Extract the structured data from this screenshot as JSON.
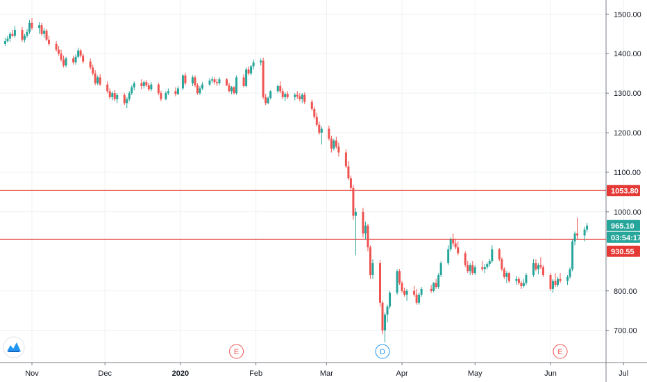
{
  "chart_data": {
    "type": "candlestick",
    "x_axis_labels": [
      "Nov",
      "Dec",
      "2020",
      "Feb",
      "Mar",
      "Apr",
      "May",
      "Jun",
      "Jul"
    ],
    "y_ticks": [
      "1500.00",
      "1400.00",
      "1300.00",
      "1200.00",
      "1100.00",
      "1000.00",
      "800.00",
      "700.00"
    ],
    "ylim": [
      625,
      1540
    ],
    "grid": true,
    "colors": {
      "up": "#26a69a",
      "down": "#ef5350",
      "level_line": "#e53935",
      "price_tag": "#26a69a",
      "level_tag": "#e53935",
      "grid": "#eef0f3"
    },
    "horizontal_levels": [
      {
        "value": 1053.8,
        "label": "1053.80"
      },
      {
        "value": 930.55,
        "label": "930.55"
      }
    ],
    "last_price": {
      "value": 965.1,
      "label": "965.10",
      "countdown": "03:54:17"
    },
    "event_markers": [
      {
        "letter": "E",
        "x_date": "2020-01-24",
        "color": "#ef5350"
      },
      {
        "letter": "D",
        "x_date": "2020-03-24",
        "color": "#2196f3"
      },
      {
        "letter": "E",
        "x_date": "2020-06-05",
        "color": "#ef5350"
      }
    ],
    "candles": [
      [
        "2019-10-21",
        1425,
        1440,
        1420,
        1432
      ],
      [
        "2019-10-22",
        1432,
        1445,
        1428,
        1438
      ],
      [
        "2019-10-23",
        1438,
        1455,
        1430,
        1450
      ],
      [
        "2019-10-24",
        1450,
        1460,
        1442,
        1445
      ],
      [
        "2019-10-25",
        1445,
        1470,
        1440,
        1460
      ],
      [
        "2019-10-28",
        1460,
        1468,
        1430,
        1435
      ],
      [
        "2019-10-29",
        1435,
        1450,
        1428,
        1445
      ],
      [
        "2019-10-30",
        1445,
        1462,
        1440,
        1455
      ],
      [
        "2019-10-31",
        1455,
        1485,
        1450,
        1478
      ],
      [
        "2019-11-01",
        1478,
        1490,
        1460,
        1465
      ],
      [
        "2019-11-04",
        1465,
        1480,
        1450,
        1472
      ],
      [
        "2019-11-05",
        1472,
        1478,
        1445,
        1450
      ],
      [
        "2019-11-06",
        1450,
        1465,
        1440,
        1458
      ],
      [
        "2019-11-07",
        1458,
        1462,
        1432,
        1435
      ],
      [
        "2019-11-08",
        1435,
        1445,
        1420,
        1425
      ],
      [
        "2019-11-11",
        1425,
        1432,
        1405,
        1410
      ],
      [
        "2019-11-12",
        1410,
        1420,
        1395,
        1400
      ],
      [
        "2019-11-13",
        1400,
        1410,
        1380,
        1385
      ],
      [
        "2019-11-14",
        1385,
        1395,
        1365,
        1370
      ],
      [
        "2019-11-15",
        1370,
        1392,
        1365,
        1388
      ],
      [
        "2019-11-18",
        1388,
        1395,
        1372,
        1378
      ],
      [
        "2019-11-19",
        1378,
        1398,
        1372,
        1392
      ],
      [
        "2019-11-20",
        1392,
        1415,
        1388,
        1408
      ],
      [
        "2019-11-21",
        1408,
        1412,
        1390,
        1395
      ],
      [
        "2019-11-22",
        1395,
        1400,
        1375,
        1380
      ],
      [
        "2019-11-25",
        1380,
        1388,
        1360,
        1365
      ],
      [
        "2019-11-26",
        1365,
        1372,
        1345,
        1350
      ],
      [
        "2019-11-27",
        1350,
        1358,
        1320,
        1325
      ],
      [
        "2019-11-28",
        1325,
        1345,
        1320,
        1340
      ],
      [
        "2019-11-29",
        1340,
        1348,
        1318,
        1322
      ],
      [
        "2019-12-02",
        1322,
        1330,
        1300,
        1305
      ],
      [
        "2019-12-03",
        1305,
        1312,
        1285,
        1290
      ],
      [
        "2019-12-04",
        1290,
        1305,
        1282,
        1300
      ],
      [
        "2019-12-05",
        1300,
        1308,
        1280,
        1285
      ],
      [
        "2019-12-06",
        1285,
        1300,
        1275,
        1295
      ],
      [
        "2019-12-09",
        1295,
        1300,
        1270,
        1275
      ],
      [
        "2019-12-10",
        1275,
        1290,
        1262,
        1285
      ],
      [
        "2019-12-11",
        1285,
        1305,
        1280,
        1300
      ],
      [
        "2019-12-12",
        1300,
        1320,
        1295,
        1315
      ],
      [
        "2019-12-13",
        1315,
        1330,
        1308,
        1325
      ],
      [
        "2019-12-16",
        1325,
        1335,
        1310,
        1318
      ],
      [
        "2019-12-17",
        1318,
        1332,
        1312,
        1328
      ],
      [
        "2019-12-18",
        1328,
        1334,
        1316,
        1320
      ],
      [
        "2019-12-19",
        1320,
        1326,
        1305,
        1310
      ],
      [
        "2019-12-20",
        1310,
        1328,
        1305,
        1322
      ],
      [
        "2019-12-23",
        1322,
        1326,
        1295,
        1300
      ],
      [
        "2019-12-24",
        1300,
        1306,
        1280,
        1285
      ],
      [
        "2019-12-26",
        1285,
        1305,
        1282,
        1300
      ],
      [
        "2019-12-27",
        1300,
        1312,
        1295,
        1305
      ],
      [
        "2019-12-30",
        1305,
        1315,
        1292,
        1298
      ],
      [
        "2019-12-31",
        1298,
        1318,
        1295,
        1312
      ],
      [
        "2020-01-02",
        1312,
        1348,
        1308,
        1345
      ],
      [
        "2020-01-03",
        1345,
        1352,
        1320,
        1325
      ],
      [
        "2020-01-06",
        1325,
        1345,
        1318,
        1340
      ],
      [
        "2020-01-07",
        1340,
        1345,
        1315,
        1320
      ],
      [
        "2020-01-08",
        1320,
        1325,
        1296,
        1300
      ],
      [
        "2020-01-09",
        1300,
        1318,
        1295,
        1312
      ],
      [
        "2020-01-10",
        1312,
        1328,
        1308,
        1322
      ],
      [
        "2020-01-13",
        1322,
        1338,
        1318,
        1332
      ],
      [
        "2020-01-14",
        1332,
        1342,
        1325,
        1335
      ],
      [
        "2020-01-15",
        1335,
        1340,
        1322,
        1328
      ],
      [
        "2020-01-16",
        1328,
        1336,
        1318,
        1325
      ],
      [
        "2020-01-17",
        1325,
        1340,
        1320,
        1335
      ],
      [
        "2020-01-20",
        1335,
        1338,
        1318,
        1320
      ],
      [
        "2020-01-21",
        1320,
        1326,
        1302,
        1305
      ],
      [
        "2020-01-22",
        1305,
        1318,
        1298,
        1315
      ],
      [
        "2020-01-23",
        1315,
        1318,
        1296,
        1300
      ],
      [
        "2020-01-24",
        1300,
        1345,
        1296,
        1340
      ],
      [
        "2020-01-27",
        1340,
        1348,
        1315,
        1318
      ],
      [
        "2020-01-28",
        1318,
        1365,
        1315,
        1360
      ],
      [
        "2020-01-29",
        1360,
        1368,
        1345,
        1350
      ],
      [
        "2020-01-30",
        1350,
        1372,
        1345,
        1368
      ],
      [
        "2020-01-31",
        1368,
        1385,
        1360,
        1378
      ],
      [
        "2020-02-03",
        1378,
        1388,
        1370,
        1382
      ],
      [
        "2020-02-04",
        1382,
        1390,
        1285,
        1290
      ],
      [
        "2020-02-05",
        1290,
        1298,
        1270,
        1275
      ],
      [
        "2020-02-06",
        1275,
        1292,
        1272,
        1288
      ],
      [
        "2020-02-07",
        1288,
        1308,
        1284,
        1305
      ],
      [
        "2020-02-10",
        1305,
        1322,
        1300,
        1318
      ],
      [
        "2020-02-11",
        1318,
        1330,
        1300,
        1305
      ],
      [
        "2020-02-12",
        1305,
        1312,
        1285,
        1290
      ],
      [
        "2020-02-13",
        1290,
        1302,
        1280,
        1298
      ],
      [
        "2020-02-14",
        1298,
        1305,
        1285,
        1290
      ],
      [
        "2020-02-17",
        1290,
        1300,
        1282,
        1296
      ],
      [
        "2020-02-18",
        1296,
        1305,
        1286,
        1292
      ],
      [
        "2020-02-19",
        1292,
        1300,
        1280,
        1285
      ],
      [
        "2020-02-20",
        1285,
        1300,
        1275,
        1296
      ],
      [
        "2020-02-21",
        1296,
        1302,
        1272,
        1278
      ],
      [
        "2020-02-24",
        1278,
        1284,
        1255,
        1260
      ],
      [
        "2020-02-25",
        1260,
        1266,
        1235,
        1240
      ],
      [
        "2020-02-26",
        1240,
        1250,
        1215,
        1220
      ],
      [
        "2020-02-27",
        1220,
        1228,
        1195,
        1200
      ],
      [
        "2020-02-28",
        1200,
        1216,
        1170,
        1210
      ],
      [
        "2020-03-02",
        1210,
        1218,
        1180,
        1185
      ],
      [
        "2020-03-03",
        1185,
        1192,
        1150,
        1160
      ],
      [
        "2020-03-04",
        1160,
        1185,
        1155,
        1180
      ],
      [
        "2020-03-05",
        1180,
        1190,
        1160,
        1165
      ],
      [
        "2020-03-06",
        1165,
        1175,
        1140,
        1150
      ],
      [
        "2020-03-09",
        1150,
        1158,
        1110,
        1115
      ],
      [
        "2020-03-10",
        1115,
        1128,
        1080,
        1085
      ],
      [
        "2020-03-11",
        1085,
        1092,
        1055,
        1060
      ],
      [
        "2020-03-12",
        1060,
        1068,
        980,
        990
      ],
      [
        "2020-03-13",
        990,
        1010,
        890,
        1000
      ],
      [
        "2020-03-16",
        1000,
        1010,
        935,
        945
      ],
      [
        "2020-03-17",
        945,
        975,
        930,
        965
      ],
      [
        "2020-03-18",
        965,
        970,
        900,
        910
      ],
      [
        "2020-03-19",
        910,
        915,
        830,
        840
      ],
      [
        "2020-03-20",
        840,
        880,
        830,
        870
      ],
      [
        "2020-03-23",
        870,
        878,
        760,
        770
      ],
      [
        "2020-03-24",
        770,
        775,
        690,
        700
      ],
      [
        "2020-03-25",
        700,
        745,
        670,
        740
      ],
      [
        "2020-03-26",
        740,
        765,
        720,
        760
      ],
      [
        "2020-03-27",
        760,
        800,
        755,
        795
      ],
      [
        "2020-03-30",
        795,
        855,
        790,
        850
      ],
      [
        "2020-03-31",
        850,
        855,
        815,
        820
      ],
      [
        "2020-04-01",
        820,
        825,
        795,
        800
      ],
      [
        "2020-04-02",
        800,
        808,
        785,
        790
      ],
      [
        "2020-04-03",
        790,
        805,
        775,
        800
      ],
      [
        "2020-04-06",
        800,
        812,
        785,
        790
      ],
      [
        "2020-04-07",
        790,
        805,
        765,
        770
      ],
      [
        "2020-04-08",
        770,
        795,
        765,
        790
      ],
      [
        "2020-04-09",
        790,
        810,
        785,
        805
      ],
      [
        "2020-04-13",
        805,
        815,
        795,
        800
      ],
      [
        "2020-04-14",
        800,
        822,
        796,
        820
      ],
      [
        "2020-04-15",
        820,
        830,
        805,
        810
      ],
      [
        "2020-04-16",
        810,
        845,
        805,
        840
      ],
      [
        "2020-04-17",
        840,
        875,
        835,
        870
      ],
      [
        "2020-04-20",
        870,
        915,
        865,
        905
      ],
      [
        "2020-04-21",
        905,
        935,
        900,
        930
      ],
      [
        "2020-04-22",
        930,
        945,
        912,
        920
      ],
      [
        "2020-04-23",
        920,
        932,
        905,
        910
      ],
      [
        "2020-04-24",
        910,
        925,
        890,
        895
      ],
      [
        "2020-04-27",
        895,
        900,
        860,
        865
      ],
      [
        "2020-04-28",
        865,
        875,
        845,
        850
      ],
      [
        "2020-04-29",
        850,
        870,
        840,
        865
      ],
      [
        "2020-04-30",
        865,
        875,
        840,
        845
      ],
      [
        "2020-05-01",
        845,
        865,
        840,
        860
      ],
      [
        "2020-05-04",
        860,
        875,
        850,
        855
      ],
      [
        "2020-05-05",
        855,
        868,
        845,
        860
      ],
      [
        "2020-05-06",
        860,
        872,
        855,
        868
      ],
      [
        "2020-05-07",
        868,
        880,
        862,
        875
      ],
      [
        "2020-05-08",
        875,
        915,
        870,
        905
      ],
      [
        "2020-05-11",
        905,
        908,
        875,
        880
      ],
      [
        "2020-05-12",
        880,
        885,
        850,
        855
      ],
      [
        "2020-05-13",
        855,
        860,
        830,
        835
      ],
      [
        "2020-05-14",
        835,
        850,
        820,
        845
      ],
      [
        "2020-05-15",
        845,
        848,
        820,
        825
      ],
      [
        "2020-05-18",
        825,
        838,
        815,
        830
      ],
      [
        "2020-05-19",
        830,
        835,
        815,
        820
      ],
      [
        "2020-05-20",
        820,
        825,
        805,
        812
      ],
      [
        "2020-05-21",
        812,
        830,
        808,
        820
      ],
      [
        "2020-05-22",
        820,
        845,
        815,
        840
      ],
      [
        "2020-05-25",
        840,
        880,
        835,
        870
      ],
      [
        "2020-05-26",
        870,
        880,
        850,
        855
      ],
      [
        "2020-05-27",
        855,
        870,
        842,
        865
      ],
      [
        "2020-05-28",
        865,
        885,
        855,
        860
      ],
      [
        "2020-05-29",
        860,
        865,
        835,
        840
      ],
      [
        "2020-06-01",
        840,
        845,
        800,
        805
      ],
      [
        "2020-06-02",
        805,
        830,
        795,
        825
      ],
      [
        "2020-06-03",
        825,
        845,
        810,
        815
      ],
      [
        "2020-06-04",
        815,
        835,
        810,
        830
      ],
      [
        "2020-06-05",
        830,
        845,
        820,
        825
      ],
      [
        "2020-06-08",
        825,
        840,
        815,
        835
      ],
      [
        "2020-06-09",
        835,
        860,
        830,
        855
      ],
      [
        "2020-06-10",
        855,
        930,
        850,
        925
      ],
      [
        "2020-06-11",
        925,
        950,
        915,
        945
      ],
      [
        "2020-06-12",
        945,
        985,
        930,
        940
      ],
      [
        "2020-06-15",
        940,
        962,
        925,
        955
      ],
      [
        "2020-06-16",
        955,
        972,
        948,
        965
      ]
    ]
  }
}
